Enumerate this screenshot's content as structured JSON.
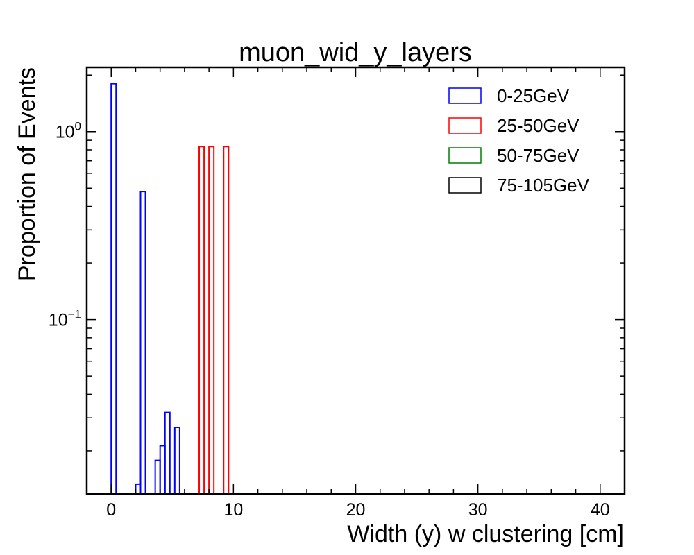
{
  "chart_data": {
    "type": "histogram",
    "title": "muon_wid_y_layers",
    "xlabel": "Width (y) w clustering [cm]",
    "ylabel": "Proportion of Events",
    "xlim": [
      -2,
      42
    ],
    "ylim": [
      0.0118,
      2.2
    ],
    "yscale": "log",
    "x_ticks": [
      {
        "value": 0,
        "label": "0"
      },
      {
        "value": 10,
        "label": "10"
      },
      {
        "value": 20,
        "label": "20"
      },
      {
        "value": 30,
        "label": "30"
      },
      {
        "value": 40,
        "label": "40"
      }
    ],
    "y_ticks": [
      {
        "value": 1.0,
        "base": "10",
        "exp": "0"
      },
      {
        "value": 0.1,
        "base": "10",
        "exp": "−1"
      }
    ],
    "legend_position": "top-right",
    "series": [
      {
        "name": "0-25GeV",
        "color": "#0000ff",
        "bins": [
          {
            "x0": 0.0,
            "x1": 0.4,
            "y": 1.8
          },
          {
            "x0": 2.0,
            "x1": 2.4,
            "y": 0.0133
          },
          {
            "x0": 2.4,
            "x1": 2.8,
            "y": 0.48
          },
          {
            "x0": 3.6,
            "x1": 4.0,
            "y": 0.0178
          },
          {
            "x0": 4.0,
            "x1": 4.4,
            "y": 0.0213
          },
          {
            "x0": 4.4,
            "x1": 4.8,
            "y": 0.032
          },
          {
            "x0": 5.2,
            "x1": 5.6,
            "y": 0.0267
          }
        ]
      },
      {
        "name": "25-50GeV",
        "color": "#ff0000",
        "bins": [
          {
            "x0": 7.2,
            "x1": 7.6,
            "y": 0.833
          },
          {
            "x0": 8.0,
            "x1": 8.4,
            "y": 0.833
          },
          {
            "x0": 9.2,
            "x1": 9.6,
            "y": 0.833
          }
        ]
      },
      {
        "name": "50-75GeV",
        "color": "#008000",
        "bins": []
      },
      {
        "name": "75-105GeV",
        "color": "#000000",
        "bins": []
      }
    ]
  }
}
